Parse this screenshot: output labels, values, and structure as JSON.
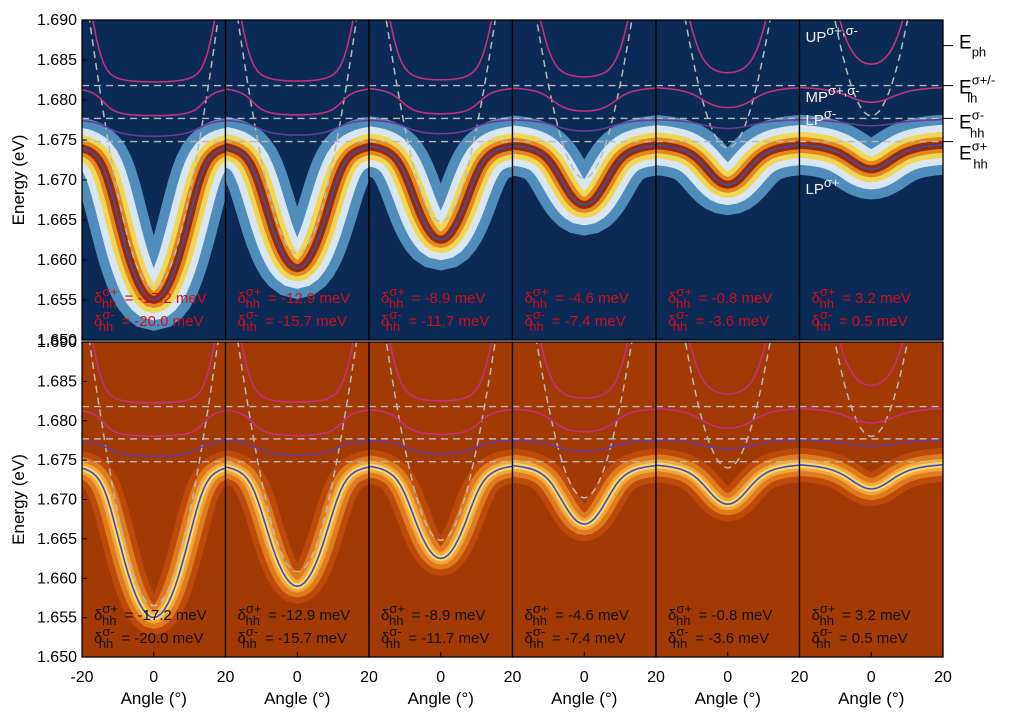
{
  "chart_data": {
    "type": "heatmap",
    "layout": "2 rows x 6 columns of angle-resolved spectra",
    "xlabel": "Angle (°)",
    "ylabel": "Energy (eV)",
    "xlim": [
      -20,
      20
    ],
    "ylim": [
      1.65,
      1.69
    ],
    "x_ticks": [
      "-20",
      "0",
      "20"
    ],
    "y_ticks": [
      "1.650",
      "1.655",
      "1.660",
      "1.665",
      "1.670",
      "1.675",
      "1.680",
      "1.685",
      "1.690"
    ],
    "reference_lines_eV": [
      1.6818,
      1.6777,
      1.6748
    ],
    "energy_levels": [
      {
        "name": "E",
        "sub": "ph",
        "sup": "",
        "energy": 1.6868
      },
      {
        "name": "E",
        "sub": "lh",
        "sup": "σ+/-",
        "energy": 1.6818
      },
      {
        "name": "E",
        "sub": "hh",
        "sup": "σ-",
        "energy": 1.6777
      },
      {
        "name": "E",
        "sub": "hh",
        "sup": "σ+",
        "energy": 1.6748
      }
    ],
    "branch_labels": [
      {
        "base": "UP",
        "sup": "σ+,σ-"
      },
      {
        "base": "MP",
        "sup": "σ+,σ-"
      },
      {
        "base": "LP",
        "sup": "σ-"
      },
      {
        "base": "LP",
        "sup": "σ+"
      }
    ],
    "rows": [
      {
        "name": "top",
        "colormap": "blue-white-yellow-red"
      },
      {
        "name": "bottom",
        "colormap": "dark-orange"
      }
    ],
    "detuning_symbol": "δ",
    "detuning_sub": "hh",
    "detuning_sup_plus": "σ+",
    "detuning_sup_minus": "σ-",
    "panels": [
      {
        "detuning_plus": "= -17.2 meV",
        "detuning_minus": "= -20.0 meV",
        "cavity_min_eV": 1.6565,
        "lp_min_eV": 1.6567
      },
      {
        "detuning_plus": "= -12.9 meV",
        "detuning_minus": "= -15.7 meV",
        "cavity_min_eV": 1.6608,
        "lp_min_eV": 1.66
      },
      {
        "detuning_plus": "= -8.9 meV",
        "detuning_minus": "= -11.7 meV",
        "cavity_min_eV": 1.6648,
        "lp_min_eV": 1.6634
      },
      {
        "detuning_plus": "= -4.6 meV",
        "detuning_minus": "= -7.4 meV",
        "cavity_min_eV": 1.6702,
        "lp_min_eV": 1.6668
      },
      {
        "detuning_plus": "= -0.8 meV",
        "detuning_minus": "= -3.6 meV",
        "cavity_min_eV": 1.674,
        "lp_min_eV": 1.6693
      },
      {
        "detuning_plus": "= 3.2 meV",
        "detuning_minus": "= 0.5 meV",
        "cavity_min_eV": 1.678,
        "lp_min_eV": 1.6712
      }
    ],
    "colors": {
      "top_deep": "#0b2a55",
      "top_mid": "#5c9fcf",
      "top_white": "#eef6fb",
      "top_yellow": "#f5d23a",
      "top_orange": "#e07a12",
      "top_red": "#8a1c0a",
      "bottom_dark": "#a23a05",
      "bottom_bright": "#ffe07a",
      "curve_magenta": "#c2327a",
      "curve_blue": "#3b4fb8",
      "curve_purple": "#6b3a9a",
      "reference_dash": "#b9b9b9",
      "detuning_text_top": "#d0101a",
      "detuning_text_bottom": "#111111"
    }
  }
}
